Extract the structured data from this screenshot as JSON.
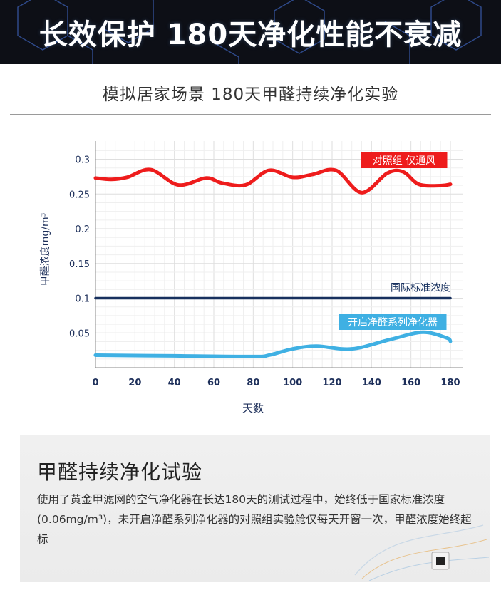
{
  "banner": {
    "title": "长效保护 180天净化性能不衰减"
  },
  "subtitle": "模拟居家场景 180天甲醛持续净化实验",
  "chart_data": {
    "type": "line",
    "xlabel": "天数",
    "ylabel": "甲醛浓度mg/m³",
    "xlim": [
      0,
      180
    ],
    "ylim": [
      0,
      0.32
    ],
    "xticks": [
      0,
      20,
      40,
      60,
      80,
      100,
      120,
      140,
      160,
      180
    ],
    "yticks": [
      0.05,
      0.1,
      0.15,
      0.2,
      0.25,
      0.3
    ],
    "ytick_labels": [
      "0.05",
      "0.1",
      "0.15",
      "0.2",
      "0.25",
      "0.3"
    ],
    "grid": true,
    "series": [
      {
        "name": "对照组 仅通风",
        "color": "#ee1c1c",
        "x": [
          0,
          8,
          16,
          28,
          42,
          56,
          64,
          76,
          88,
          100,
          110,
          122,
          135,
          148,
          156,
          164,
          175,
          180
        ],
        "y": [
          0.273,
          0.271,
          0.274,
          0.285,
          0.263,
          0.273,
          0.266,
          0.263,
          0.284,
          0.274,
          0.278,
          0.284,
          0.252,
          0.28,
          0.282,
          0.264,
          0.262,
          0.264
        ]
      },
      {
        "name": "国际标准浓度",
        "color": "#17305e",
        "x": [
          0,
          180
        ],
        "y": [
          0.1,
          0.1
        ]
      },
      {
        "name": "开启净醛系列净化器",
        "color": "#3fb0e3",
        "x": [
          0,
          40,
          80,
          88,
          100,
          112,
          130,
          150,
          166,
          178,
          180
        ],
        "y": [
          0.018,
          0.017,
          0.016,
          0.018,
          0.027,
          0.031,
          0.027,
          0.041,
          0.051,
          0.043,
          0.038
        ]
      }
    ]
  },
  "info": {
    "title": "甲醛持续净化试验",
    "body": "使用了黄金甲滤网的空气净化器在长达180天的测试过程中，始终低于国家标准浓度(0.06mg/m³)，未开启净醛系列净化器的对照组实验舱仅每天开窗一次，甲醛浓度始终超标"
  },
  "colors": {
    "banner_bg": "#0d0f16",
    "control_red": "#ee1c1c",
    "standard_navy": "#17305e",
    "purifier_blue": "#3fb0e3"
  }
}
